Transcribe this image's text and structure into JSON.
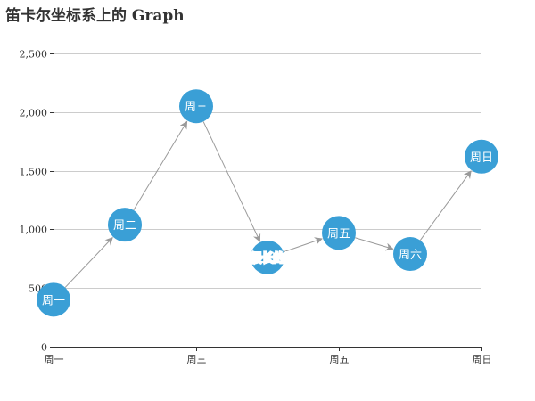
{
  "chart_data": {
    "type": "graph",
    "title": "笛卡尔坐标系上的 Graph",
    "x_axis": {
      "type": "category",
      "categories": [
        "周一",
        "周二",
        "周三",
        "周四",
        "周五",
        "周六",
        "周日"
      ],
      "tick_labels": [
        "周一",
        "周三",
        "周五",
        "周日"
      ]
    },
    "y_axis": {
      "type": "value",
      "ylim": [
        0,
        2500
      ],
      "ticks": [
        0,
        500,
        1000,
        1500,
        2000,
        2500
      ],
      "tick_labels": [
        "0",
        "500",
        "1,000",
        "1,500",
        "2,000",
        "2,500"
      ]
    },
    "grid": true,
    "nodes": [
      {
        "label": "周一",
        "x": "周一",
        "y": 400
      },
      {
        "label": "周二",
        "x": "周二",
        "y": 1040
      },
      {
        "label": "周三",
        "x": "周三",
        "y": 2050
      },
      {
        "label": "很长很长的周四",
        "x": "周四",
        "y": 760
      },
      {
        "label": "周五",
        "x": "周五",
        "y": 970
      },
      {
        "label": "周六",
        "x": "周六",
        "y": 790
      },
      {
        "label": "周日",
        "x": "周日",
        "y": 1620
      }
    ],
    "links": [
      {
        "source": 0,
        "target": 1
      },
      {
        "source": 1,
        "target": 2
      },
      {
        "source": 2,
        "target": 3
      },
      {
        "source": 3,
        "target": 4
      },
      {
        "source": 4,
        "target": 5
      },
      {
        "source": 5,
        "target": 6
      }
    ],
    "colors": {
      "node": "#3a9fd6",
      "node_label": "#ffffff",
      "outside_label": "#3a9fd6",
      "link": "#9a9a9a",
      "grid": "#cccccc",
      "axis": "#333333",
      "text": "#333333"
    }
  }
}
